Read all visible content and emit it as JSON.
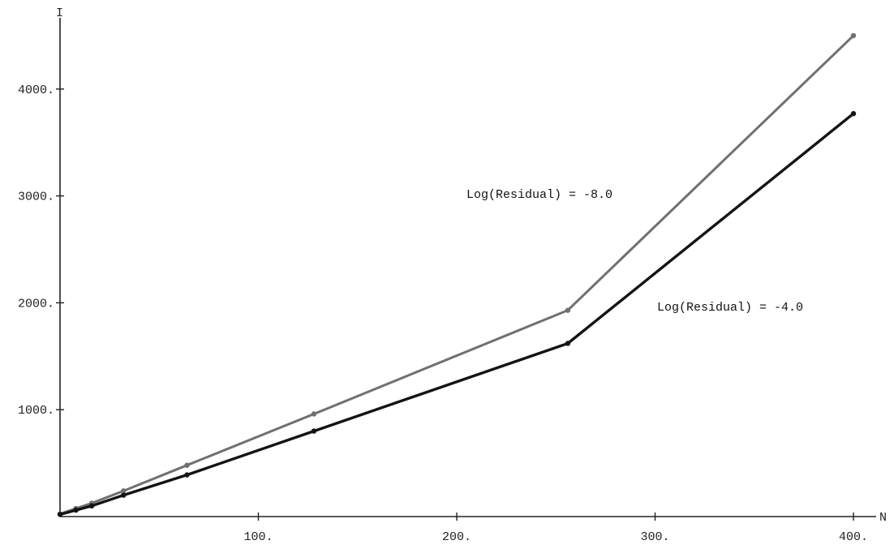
{
  "chart_data": {
    "type": "line",
    "xlabel": "N",
    "ylabel": "I",
    "xlim": [
      0,
      410
    ],
    "ylim": [
      0,
      4700
    ],
    "x_ticks": [
      {
        "value": 100,
        "label": "100."
      },
      {
        "value": 200,
        "label": "200."
      },
      {
        "value": 300,
        "label": "300."
      },
      {
        "value": 400,
        "label": "400."
      }
    ],
    "y_ticks": [
      {
        "value": 1000,
        "label": "1000."
      },
      {
        "value": 2000,
        "label": "2000."
      },
      {
        "value": 3000,
        "label": "3000."
      },
      {
        "value": 4000,
        "label": "4000."
      }
    ],
    "grid": false,
    "series": [
      {
        "name": "Log(Residual) = -8.0",
        "color": "#707070",
        "points": [
          [
            0,
            25
          ],
          [
            8,
            75
          ],
          [
            16,
            125
          ],
          [
            32,
            240
          ],
          [
            64,
            480
          ],
          [
            128,
            960
          ],
          [
            256,
            1930
          ],
          [
            400,
            4500
          ]
        ]
      },
      {
        "name": "Log(Residual) = -4.0",
        "color": "#141414",
        "points": [
          [
            0,
            20
          ],
          [
            8,
            60
          ],
          [
            16,
            100
          ],
          [
            32,
            200
          ],
          [
            64,
            390
          ],
          [
            128,
            800
          ],
          [
            256,
            1620
          ],
          [
            400,
            3770
          ]
        ]
      }
    ],
    "annotations": [
      {
        "text": "Log(Residual) = -8.0",
        "series": 0
      },
      {
        "text": "Log(Residual) = -4.0",
        "series": 1
      }
    ]
  }
}
